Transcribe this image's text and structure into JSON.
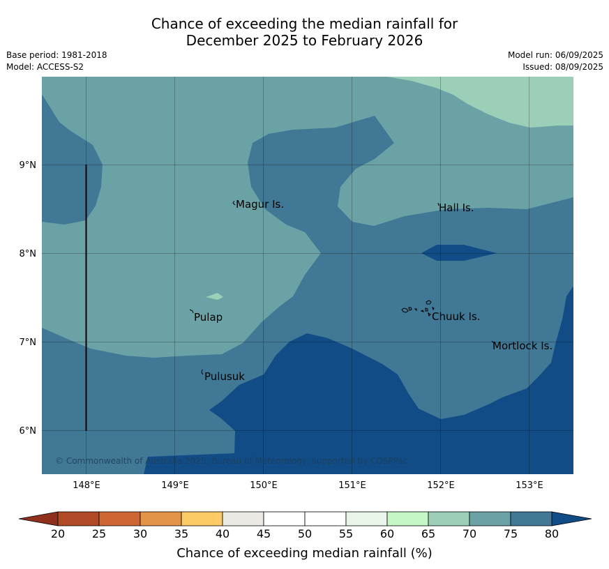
{
  "title": {
    "line1": "Chance of exceeding the median rainfall for",
    "line2": "December 2025 to February 2026"
  },
  "meta": {
    "base_period": "Base period: 1981-2018",
    "model": "Model: ACCESS-S2",
    "model_run": "Model run: 06/09/2025",
    "issued": "Issued: 08/09/2025"
  },
  "map": {
    "lon_ticks": [
      "148°E",
      "149°E",
      "150°E",
      "151°E",
      "152°E",
      "153°E"
    ],
    "lat_ticks": [
      "9°N",
      "8°N",
      "7°N",
      "6°N"
    ],
    "places": [
      "Magur Is.",
      "Hall Is.",
      "Pulap",
      "Chuuk Is.",
      "Mortlock Is.",
      "Pulusuk"
    ],
    "copyright": "© Commonwealth of Australia 2025, Bureau of Meteorology, supported by COSPPac"
  },
  "colorbar": {
    "label": "Chance of exceeding median rainfall (%)",
    "ticks": [
      "20",
      "25",
      "30",
      "35",
      "40",
      "45",
      "50",
      "55",
      "60",
      "65",
      "70",
      "75",
      "80"
    ],
    "colors": {
      "under": "#8f2f1d",
      "bins": [
        "#b04a26",
        "#cf6532",
        "#e29448",
        "#fdcb65",
        "#ece8e3",
        "#ffffff",
        "#ffffff",
        "#eaf5ea",
        "#c6f5c6",
        "#9bcfb8",
        "#6ba2a6",
        "#417896"
      ],
      "over": "#124c87"
    }
  }
}
